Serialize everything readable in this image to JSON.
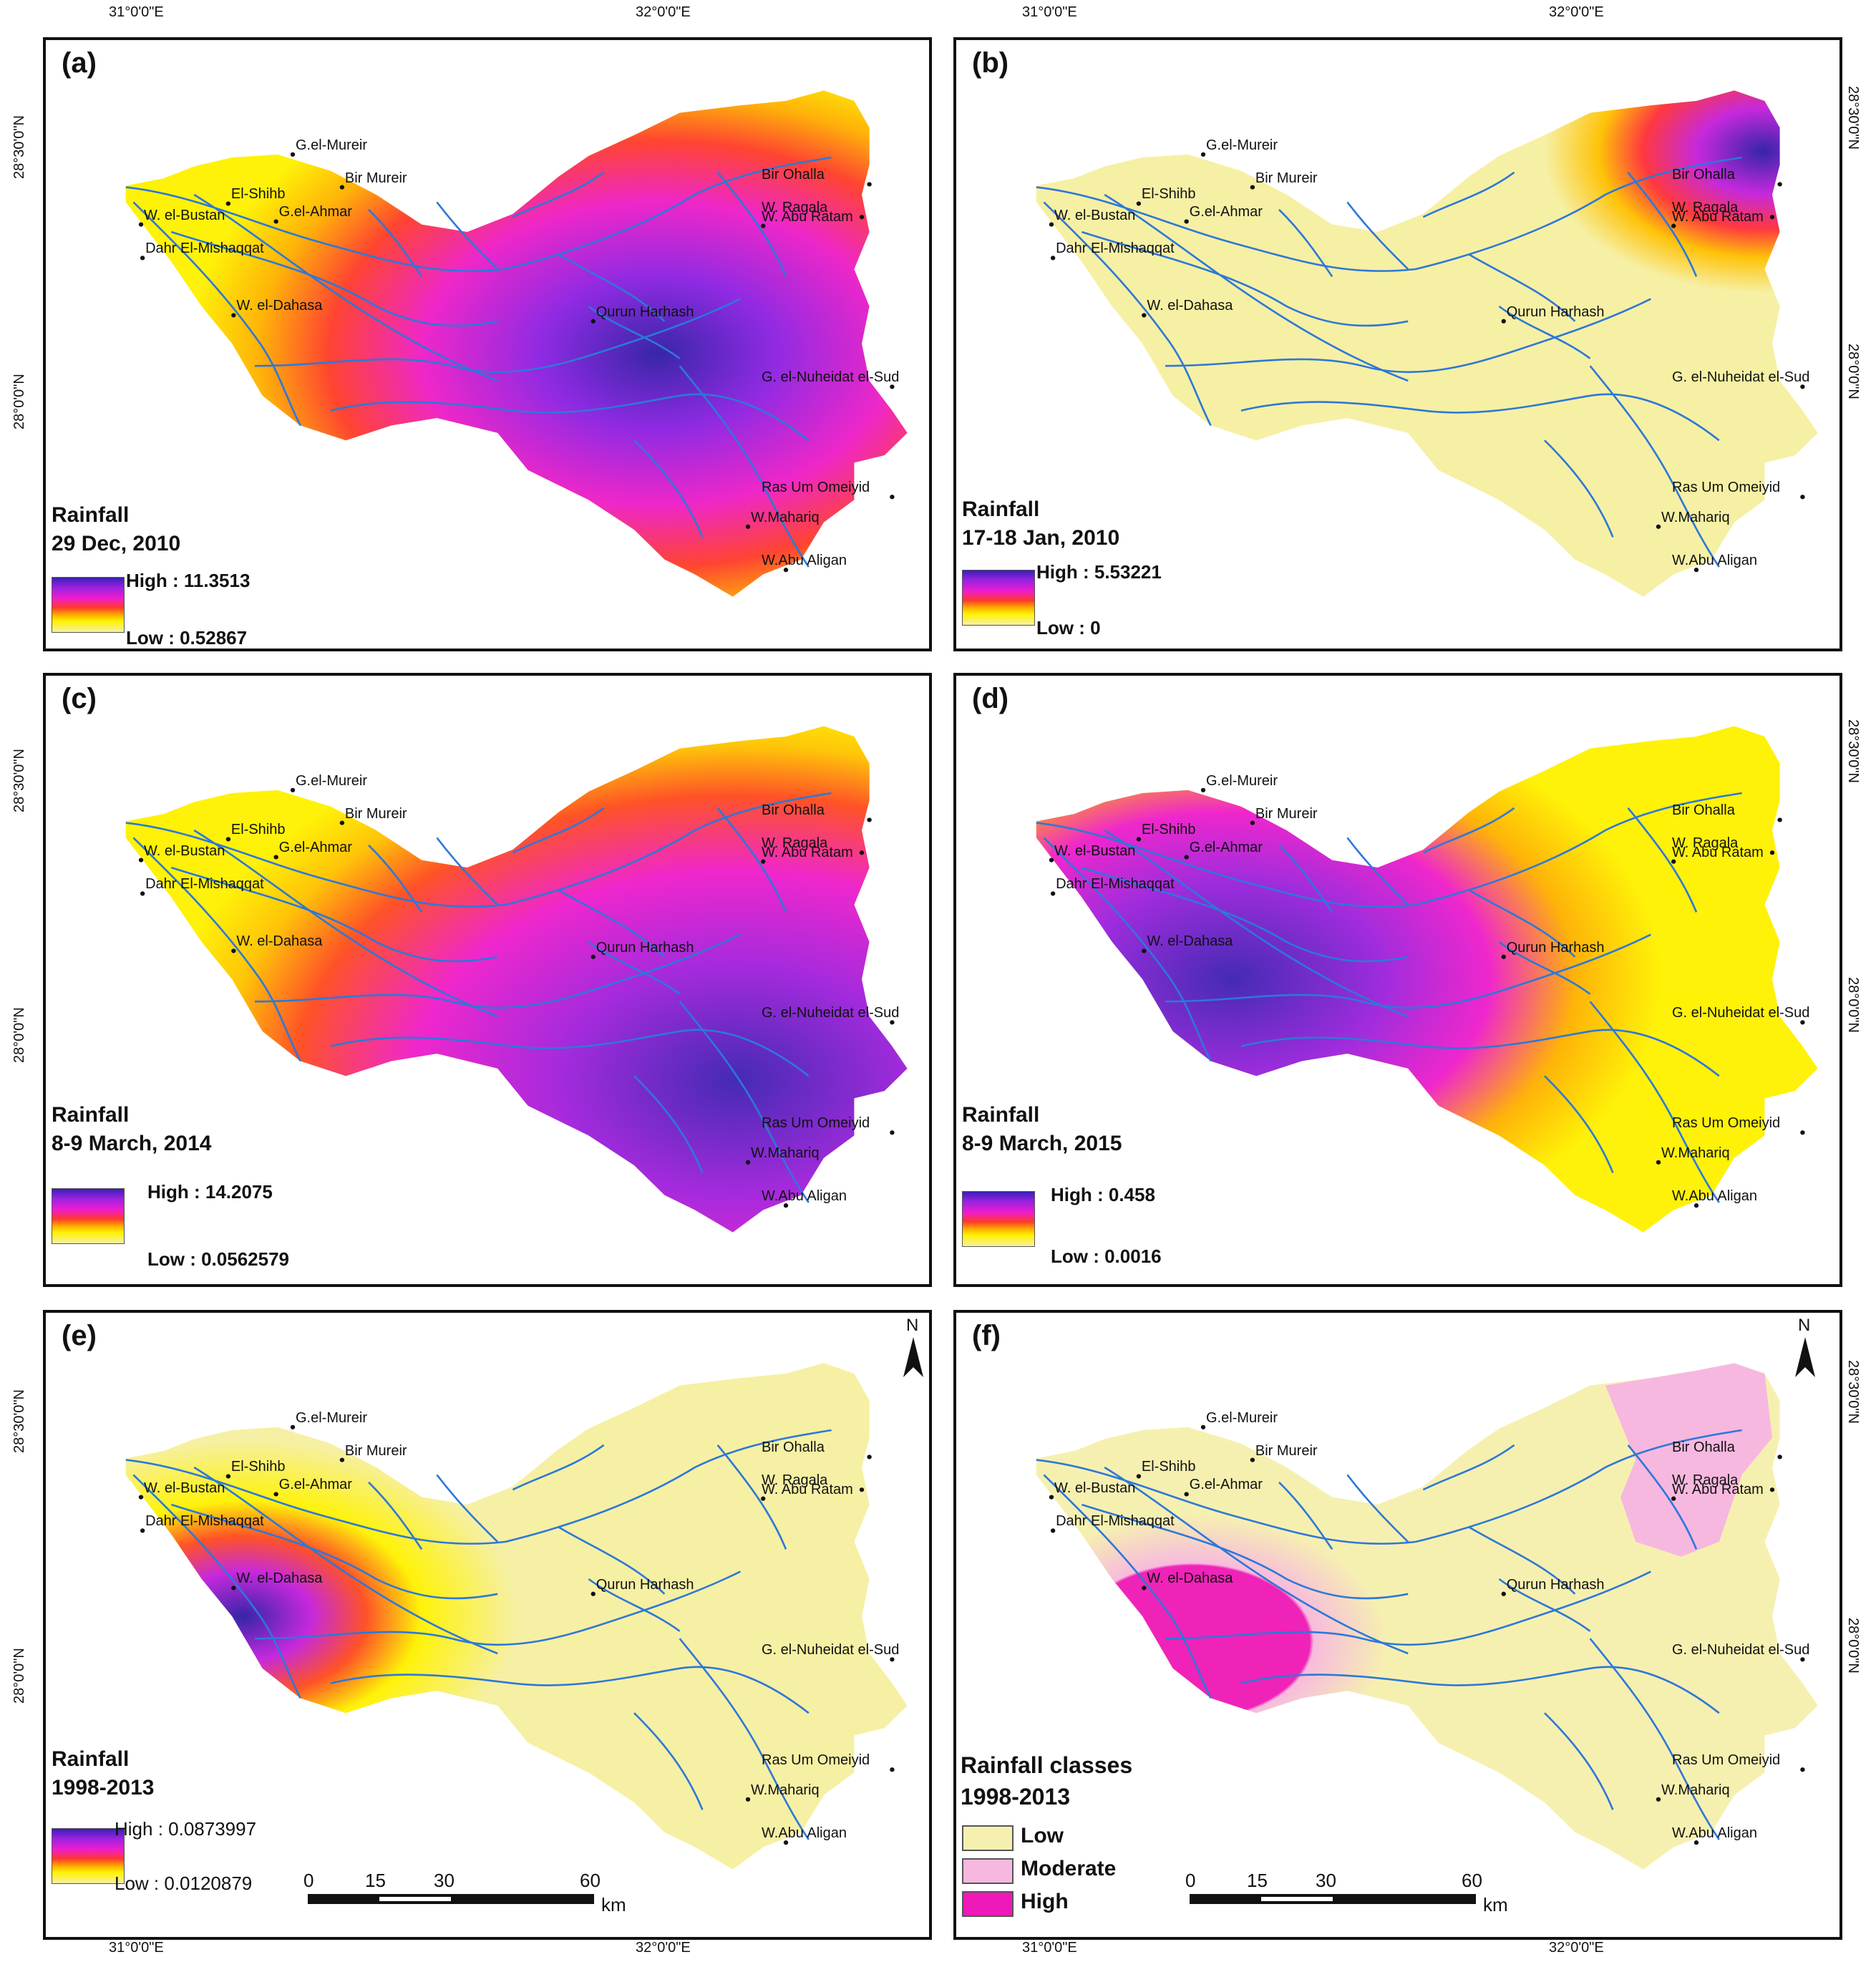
{
  "coords": {
    "lon_31": "31°0'0\"E",
    "lon_32": "32°0'0\"E",
    "lat_2830": "28°30'0\"N",
    "lat_280": "28°0'0\"N"
  },
  "places": [
    "G.el-Mureir",
    "Bir Mureir",
    "El-Shihb",
    "G.el-Ahmar",
    "W. el-Bustan",
    "Dahr El-Mishaqqat",
    "W. el-Dahasa",
    "Qurun Harhash",
    "W. Abu Ratam",
    "Bir Ohalla",
    "W. Ragala",
    "G. el-Nuheidat el-Sud",
    "Ras Um Omeiyid",
    "W.Mahariq",
    "W.Abu Aligan"
  ],
  "panels": [
    {
      "label": "(a)",
      "title": "Rainfall\n29 Dec, 2010",
      "high": "High : 11.3513",
      "low": "Low : 0.52867"
    },
    {
      "label": "(b)",
      "title": "Rainfall\n17-18 Jan, 2010",
      "high": "High : 5.53221",
      "low": "Low : 0"
    },
    {
      "label": "(c)",
      "title": "Rainfall\n8-9 March, 2014",
      "high": "High : 14.2075",
      "low": "Low : 0.0562579"
    },
    {
      "label": "(d)",
      "title": "Rainfall\n8-9 March, 2015",
      "high": "High : 0.458",
      "low": "Low : 0.0016"
    },
    {
      "label": "(e)",
      "title": "Rainfall\n1998-2013",
      "high": "High : 0.0873997",
      "low": "Low : 0.0120879"
    },
    {
      "label": "(f)",
      "title": "Rainfall classes\n1998-2013"
    }
  ],
  "classes": [
    "Low",
    "Moderate",
    "High"
  ],
  "class_colors": [
    "#f6f0b0",
    "#f7b8e0",
    "#ef18b8"
  ],
  "scalebar": {
    "ticks": [
      "0",
      "15",
      "30",
      "60"
    ],
    "unit": "km"
  },
  "north": "N",
  "colors": {
    "river": "#2d78d8",
    "ramp_high": "#3b1fb8",
    "ramp_low": "#f6f0a4"
  }
}
